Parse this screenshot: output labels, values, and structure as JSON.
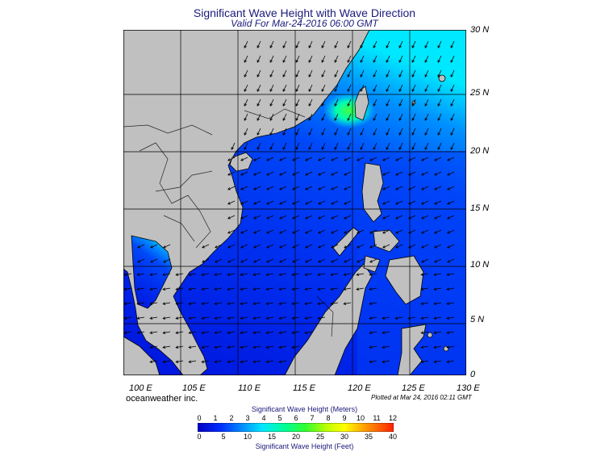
{
  "title": "Significant Wave Height with Wave Direction",
  "subtitle": "Valid For Mar-24-2016 06:00 GMT",
  "lat_labels": [
    "30 N",
    "25 N",
    "20 N",
    "15 N",
    "10 N",
    "5 N",
    "0"
  ],
  "lon_labels": [
    "100 E",
    "105 E",
    "110 E",
    "115 E",
    "120 E",
    "125 E",
    "130 E"
  ],
  "brand": "oceanweather inc.",
  "plotted": "Plotted at Mar 24, 2016 02:11 GMT",
  "legend": {
    "title_meters": "Significant Wave Height (Meters)",
    "title_feet": "Significant Wave Height (Feet)",
    "meters_ticks": [
      "0",
      "1",
      "2",
      "3",
      "4",
      "5",
      "6",
      "7",
      "8",
      "9",
      "10",
      "11",
      "12"
    ],
    "feet_ticks": [
      "0",
      "5",
      "10",
      "15",
      "20",
      "25",
      "30",
      "35",
      "40"
    ]
  },
  "colors": {
    "land": "#c0c0c0",
    "sea_low": "#0010e0",
    "sea_mid": "#0050ff",
    "sea_high": "#00d0ff",
    "peak": "#40ff40"
  }
}
